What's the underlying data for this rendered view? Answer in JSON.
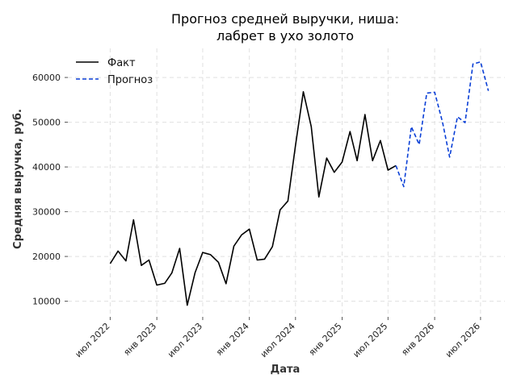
{
  "chart_data": {
    "type": "line",
    "title_line1": "Прогноз средней выручки, ниша:",
    "title_line2": "лабрет в ухо золото",
    "xlabel": "Дата",
    "ylabel": "Средняя выручка, руб.",
    "ylim": [
      6500,
      66500
    ],
    "y_ticks": [
      10000,
      20000,
      30000,
      40000,
      50000,
      60000
    ],
    "x_ticks": [
      {
        "date": "2022-07-01",
        "label": "июл 2022"
      },
      {
        "date": "2023-01-01",
        "label": "янв 2023"
      },
      {
        "date": "2023-07-01",
        "label": "июл 2023"
      },
      {
        "date": "2024-01-01",
        "label": "янв 2024"
      },
      {
        "date": "2024-07-01",
        "label": "июл 2024"
      },
      {
        "date": "2025-01-01",
        "label": "янв 2025"
      },
      {
        "date": "2025-07-01",
        "label": "июл 2025"
      },
      {
        "date": "2026-01-01",
        "label": "янв 2026"
      },
      {
        "date": "2026-07-01",
        "label": "июл 2026"
      }
    ],
    "xlim": [
      "2022-01-15",
      "2026-10-05"
    ],
    "grid": true,
    "legend_position": "top-left",
    "series": [
      {
        "name": "Факт",
        "color": "#000000",
        "style": "solid",
        "points": [
          {
            "x": "2022-07-01",
            "y": 18400
          },
          {
            "x": "2022-08-01",
            "y": 21200
          },
          {
            "x": "2022-09-01",
            "y": 19000
          },
          {
            "x": "2022-10-01",
            "y": 28200
          },
          {
            "x": "2022-11-01",
            "y": 18000
          },
          {
            "x": "2022-12-01",
            "y": 19200
          },
          {
            "x": "2023-01-01",
            "y": 13600
          },
          {
            "x": "2023-02-01",
            "y": 14000
          },
          {
            "x": "2023-03-01",
            "y": 16300
          },
          {
            "x": "2023-04-01",
            "y": 21800
          },
          {
            "x": "2023-05-01",
            "y": 9100
          },
          {
            "x": "2023-06-01",
            "y": 16400
          },
          {
            "x": "2023-07-01",
            "y": 20900
          },
          {
            "x": "2023-08-01",
            "y": 20400
          },
          {
            "x": "2023-09-01",
            "y": 18700
          },
          {
            "x": "2023-10-01",
            "y": 13900
          },
          {
            "x": "2023-11-01",
            "y": 22300
          },
          {
            "x": "2023-12-01",
            "y": 24800
          },
          {
            "x": "2024-01-01",
            "y": 26100
          },
          {
            "x": "2024-02-01",
            "y": 19200
          },
          {
            "x": "2024-03-01",
            "y": 19400
          },
          {
            "x": "2024-04-01",
            "y": 22200
          },
          {
            "x": "2024-05-01",
            "y": 30400
          },
          {
            "x": "2024-06-01",
            "y": 32400
          },
          {
            "x": "2024-07-01",
            "y": 44800
          },
          {
            "x": "2024-08-01",
            "y": 56800
          },
          {
            "x": "2024-09-01",
            "y": 49000
          },
          {
            "x": "2024-10-01",
            "y": 33300
          },
          {
            "x": "2024-11-01",
            "y": 42000
          },
          {
            "x": "2024-12-01",
            "y": 38800
          },
          {
            "x": "2025-01-01",
            "y": 41100
          },
          {
            "x": "2025-02-01",
            "y": 47900
          },
          {
            "x": "2025-03-01",
            "y": 41400
          },
          {
            "x": "2025-04-01",
            "y": 51700
          },
          {
            "x": "2025-05-01",
            "y": 41400
          },
          {
            "x": "2025-06-01",
            "y": 45900
          },
          {
            "x": "2025-07-01",
            "y": 39300
          },
          {
            "x": "2025-08-01",
            "y": 40300
          }
        ]
      },
      {
        "name": "Прогноз",
        "color": "#0a3fd6",
        "style": "dashed",
        "points": [
          {
            "x": "2025-08-01",
            "y": 40300
          },
          {
            "x": "2025-09-01",
            "y": 35600
          },
          {
            "x": "2025-10-01",
            "y": 49000
          },
          {
            "x": "2025-11-01",
            "y": 45000
          },
          {
            "x": "2025-12-01",
            "y": 56500
          },
          {
            "x": "2026-01-01",
            "y": 56700
          },
          {
            "x": "2026-02-01",
            "y": 50000
          },
          {
            "x": "2026-03-01",
            "y": 42200
          },
          {
            "x": "2026-04-01",
            "y": 51200
          },
          {
            "x": "2026-05-01",
            "y": 49900
          },
          {
            "x": "2026-06-01",
            "y": 63000
          },
          {
            "x": "2026-07-01",
            "y": 63500
          },
          {
            "x": "2026-08-01",
            "y": 57000
          }
        ]
      }
    ]
  }
}
